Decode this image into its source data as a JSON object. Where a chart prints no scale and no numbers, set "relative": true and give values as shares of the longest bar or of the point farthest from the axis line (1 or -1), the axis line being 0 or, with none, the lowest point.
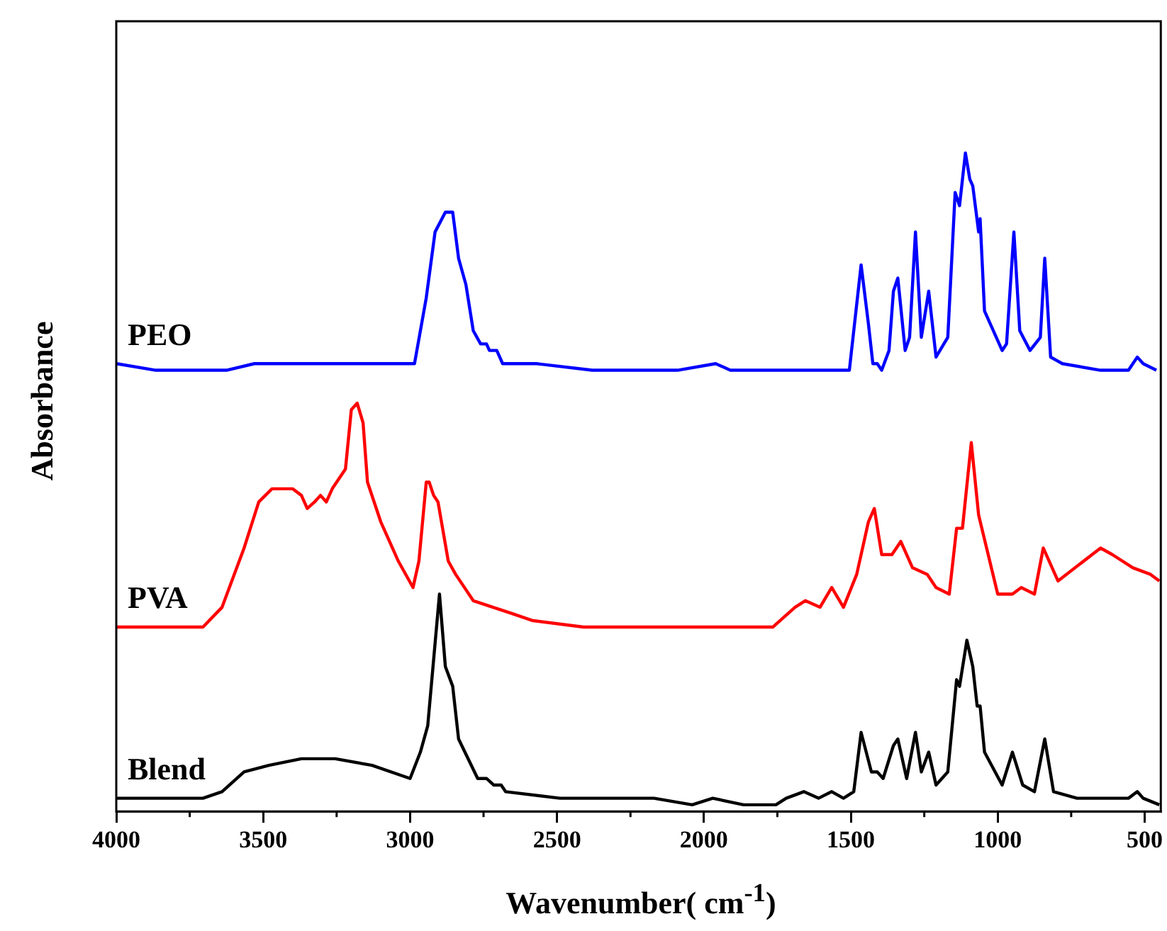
{
  "chart_data": {
    "type": "line",
    "relative": true,
    "xlabel": "Wavenumber( cm$^{-1}$)",
    "ylabel": "Absorbance",
    "xlim": [
      4000,
      445
    ],
    "xticks": [
      4000,
      3500,
      3000,
      2500,
      2000,
      1500,
      1000,
      500
    ],
    "legend": false,
    "grid": false,
    "marker": "none",
    "line_style": "solid",
    "tick_labels": "x",
    "series": [
      {
        "name": "PEO",
        "color": "#0000ff",
        "x": [
          4000,
          3865,
          3745,
          3625,
          3530,
          3410,
          3290,
          3100,
          3000,
          2985,
          2965,
          2945,
          2915,
          2880,
          2855,
          2835,
          2810,
          2785,
          2760,
          2740,
          2730,
          2705,
          2685,
          2570,
          2380,
          2235,
          2170,
          2090,
          1960,
          1910,
          1815,
          1740,
          1645,
          1530,
          1505,
          1465,
          1440,
          1425,
          1410,
          1395,
          1370,
          1355,
          1340,
          1315,
          1300,
          1280,
          1260,
          1235,
          1210,
          1170,
          1145,
          1130,
          1110,
          1095,
          1085,
          1065,
          1060,
          1045,
          985,
          970,
          945,
          925,
          890,
          855,
          840,
          820,
          780,
          650,
          555,
          525,
          505,
          460
        ],
        "values": [
          0.68,
          0.67,
          0.67,
          0.67,
          0.68,
          0.68,
          0.68,
          0.68,
          0.68,
          0.68,
          0.73,
          0.78,
          0.88,
          0.91,
          0.91,
          0.84,
          0.8,
          0.73,
          0.71,
          0.71,
          0.7,
          0.7,
          0.68,
          0.68,
          0.67,
          0.67,
          0.67,
          0.67,
          0.68,
          0.67,
          0.67,
          0.67,
          0.67,
          0.67,
          0.67,
          0.83,
          0.74,
          0.68,
          0.68,
          0.67,
          0.7,
          0.79,
          0.81,
          0.7,
          0.72,
          0.88,
          0.72,
          0.79,
          0.69,
          0.72,
          0.94,
          0.92,
          1.0,
          0.96,
          0.95,
          0.88,
          0.9,
          0.76,
          0.7,
          0.71,
          0.88,
          0.73,
          0.7,
          0.72,
          0.84,
          0.69,
          0.68,
          0.67,
          0.67,
          0.69,
          0.68,
          0.67
        ]
      },
      {
        "name": "PVA",
        "color": "#ff0000",
        "x": [
          4000,
          3705,
          3640,
          3565,
          3515,
          3470,
          3435,
          3400,
          3370,
          3350,
          3325,
          3305,
          3285,
          3265,
          3220,
          3200,
          3180,
          3160,
          3145,
          3100,
          3040,
          2990,
          2970,
          2945,
          2935,
          2920,
          2905,
          2870,
          2845,
          2785,
          2650,
          2585,
          2410,
          2235,
          2010,
          1765,
          1715,
          1690,
          1655,
          1605,
          1565,
          1525,
          1480,
          1440,
          1420,
          1395,
          1360,
          1330,
          1290,
          1240,
          1210,
          1165,
          1140,
          1120,
          1090,
          1065,
          1000,
          950,
          920,
          875,
          845,
          795,
          650,
          610,
          540,
          480,
          450
        ],
        "values": [
          0.28,
          0.28,
          0.31,
          0.4,
          0.47,
          0.49,
          0.49,
          0.49,
          0.48,
          0.46,
          0.47,
          0.48,
          0.47,
          0.49,
          0.52,
          0.61,
          0.62,
          0.59,
          0.5,
          0.44,
          0.38,
          0.34,
          0.38,
          0.5,
          0.5,
          0.48,
          0.47,
          0.38,
          0.36,
          0.32,
          0.3,
          0.29,
          0.28,
          0.28,
          0.28,
          0.28,
          0.3,
          0.31,
          0.32,
          0.31,
          0.34,
          0.31,
          0.36,
          0.44,
          0.46,
          0.39,
          0.39,
          0.41,
          0.37,
          0.36,
          0.34,
          0.33,
          0.43,
          0.43,
          0.56,
          0.45,
          0.33,
          0.33,
          0.34,
          0.33,
          0.4,
          0.35,
          0.4,
          0.39,
          0.37,
          0.36,
          0.35
        ]
      },
      {
        "name": "Blend",
        "color": "#000000",
        "x": [
          4000,
          3705,
          3640,
          3565,
          3480,
          3370,
          3255,
          3130,
          3000,
          2965,
          2940,
          2900,
          2880,
          2855,
          2835,
          2770,
          2740,
          2715,
          2690,
          2675,
          2490,
          2330,
          2170,
          2040,
          1970,
          1865,
          1755,
          1720,
          1660,
          1610,
          1565,
          1525,
          1490,
          1465,
          1430,
          1410,
          1390,
          1355,
          1340,
          1310,
          1280,
          1260,
          1235,
          1210,
          1170,
          1140,
          1130,
          1105,
          1085,
          1070,
          1060,
          1045,
          985,
          950,
          915,
          875,
          840,
          810,
          730,
          555,
          525,
          505,
          450
        ],
        "values": [
          0.02,
          0.02,
          0.03,
          0.06,
          0.07,
          0.08,
          0.08,
          0.07,
          0.05,
          0.09,
          0.13,
          0.33,
          0.22,
          0.19,
          0.11,
          0.05,
          0.05,
          0.04,
          0.04,
          0.03,
          0.02,
          0.02,
          0.02,
          0.01,
          0.02,
          0.01,
          0.01,
          0.02,
          0.03,
          0.02,
          0.03,
          0.02,
          0.03,
          0.12,
          0.06,
          0.06,
          0.05,
          0.1,
          0.11,
          0.05,
          0.12,
          0.06,
          0.09,
          0.04,
          0.06,
          0.2,
          0.19,
          0.26,
          0.22,
          0.16,
          0.16,
          0.09,
          0.04,
          0.09,
          0.04,
          0.03,
          0.11,
          0.03,
          0.02,
          0.02,
          0.03,
          0.02,
          0.01
        ]
      }
    ]
  }
}
